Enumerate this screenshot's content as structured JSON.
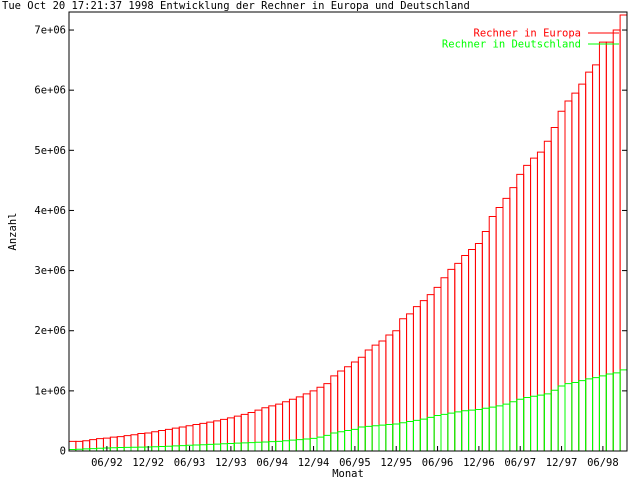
{
  "title": "Tue Oct 20 17:21:37 1998 Entwicklung der Rechner in Europa und Deutschland",
  "colors": {
    "europa": "#ff0000",
    "deutschland": "#00ff00",
    "axes": "#000000",
    "background": "#ffffff"
  },
  "chart_data": {
    "type": "bar",
    "title": "Entwicklung der Rechner in Europa und Deutschland",
    "xlabel": "Monat",
    "ylabel": "Anzahl",
    "ylim": [
      0,
      7300000
    ],
    "yticks": [
      0,
      1000000,
      2000000,
      3000000,
      4000000,
      5000000,
      6000000,
      7000000
    ],
    "ytick_labels": [
      "0",
      "1e+06",
      "2e+06",
      "3e+06",
      "4e+06",
      "5e+06",
      "6e+06",
      "7e+06"
    ],
    "xtick_labels": [
      "06/92",
      "12/92",
      "06/93",
      "12/93",
      "06/94",
      "12/94",
      "06/95",
      "12/95",
      "06/96",
      "12/96",
      "06/97",
      "12/97",
      "06/98"
    ],
    "legend_position": "top-right",
    "grid": false,
    "x": [
      "01/92",
      "02/92",
      "03/92",
      "04/92",
      "05/92",
      "06/92",
      "07/92",
      "08/92",
      "09/92",
      "10/92",
      "11/92",
      "12/92",
      "01/93",
      "02/93",
      "03/93",
      "04/93",
      "05/93",
      "06/93",
      "07/93",
      "08/93",
      "09/93",
      "10/93",
      "11/93",
      "12/93",
      "01/94",
      "02/94",
      "03/94",
      "04/94",
      "05/94",
      "06/94",
      "07/94",
      "08/94",
      "09/94",
      "10/94",
      "11/94",
      "12/94",
      "01/95",
      "02/95",
      "03/95",
      "04/95",
      "05/95",
      "06/95",
      "07/95",
      "08/95",
      "09/95",
      "10/95",
      "11/95",
      "12/95",
      "01/96",
      "02/96",
      "03/96",
      "04/96",
      "05/96",
      "06/96",
      "07/96",
      "08/96",
      "09/96",
      "10/96",
      "11/96",
      "12/96",
      "01/97",
      "02/97",
      "03/97",
      "04/97",
      "05/97",
      "06/97",
      "07/97",
      "08/97",
      "09/97",
      "10/97",
      "11/97",
      "12/97",
      "01/98",
      "02/98",
      "03/98",
      "04/98",
      "05/98",
      "06/98",
      "07/98",
      "08/98",
      "09/98"
    ],
    "series": [
      {
        "name": "Rechner in Europa",
        "values": [
          160000,
          160000,
          170000,
          190000,
          205000,
          215000,
          230000,
          240000,
          255000,
          270000,
          290000,
          300000,
          320000,
          340000,
          360000,
          380000,
          400000,
          420000,
          440000,
          460000,
          480000,
          500000,
          525000,
          550000,
          580000,
          610000,
          640000,
          680000,
          720000,
          750000,
          780000,
          820000,
          860000,
          900000,
          950000,
          1000000,
          1060000,
          1120000,
          1250000,
          1330000,
          1400000,
          1480000,
          1560000,
          1680000,
          1760000,
          1830000,
          1930000,
          2000000,
          2200000,
          2280000,
          2400000,
          2500000,
          2600000,
          2720000,
          2880000,
          3020000,
          3120000,
          3250000,
          3350000,
          3450000,
          3650000,
          3900000,
          4050000,
          4200000,
          4380000,
          4600000,
          4750000,
          4870000,
          4970000,
          5150000,
          5380000,
          5650000,
          5820000,
          5950000,
          6100000,
          6300000,
          6420000,
          6800000,
          6800000,
          7000000,
          7250000
        ]
      },
      {
        "name": "Rechner in Deutschland",
        "values": [
          25000,
          30000,
          35000,
          40000,
          45000,
          50000,
          55000,
          58000,
          60000,
          62000,
          64000,
          66000,
          70000,
          75000,
          80000,
          85000,
          90000,
          95000,
          100000,
          105000,
          110000,
          115000,
          120000,
          125000,
          130000,
          135000,
          140000,
          145000,
          150000,
          155000,
          160000,
          170000,
          180000,
          190000,
          200000,
          210000,
          230000,
          260000,
          300000,
          320000,
          340000,
          360000,
          400000,
          410000,
          420000,
          430000,
          440000,
          450000,
          470000,
          490000,
          510000,
          530000,
          560000,
          590000,
          610000,
          630000,
          650000,
          670000,
          680000,
          690000,
          710000,
          730000,
          750000,
          780000,
          820000,
          860000,
          890000,
          910000,
          930000,
          950000,
          1010000,
          1080000,
          1120000,
          1140000,
          1170000,
          1200000,
          1220000,
          1250000,
          1280000,
          1300000,
          1350000
        ]
      }
    ]
  }
}
